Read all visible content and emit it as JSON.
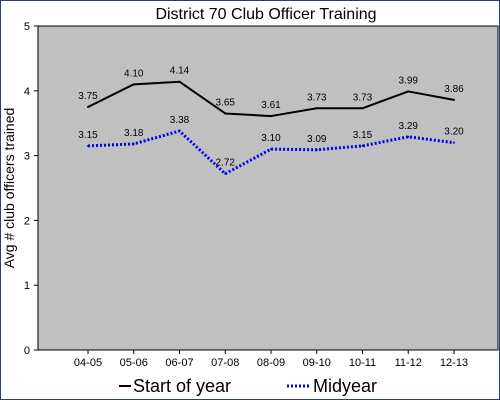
{
  "chart_data": {
    "type": "line",
    "title": "District 70 Club Officer Training",
    "xlabel": "",
    "ylabel": "Avg # club officers trained",
    "categories": [
      "04-05",
      "05-06",
      "06-07",
      "07-08",
      "08-09",
      "09-10",
      "10-11",
      "11-12",
      "12-13"
    ],
    "ylim": [
      0,
      5
    ],
    "yticks": [
      0,
      1,
      2,
      3,
      4,
      5
    ],
    "grid": false,
    "legend_position": "bottom",
    "plot_background": "#c0c0c0",
    "series": [
      {
        "name": "Start of year",
        "values": [
          3.75,
          4.1,
          4.14,
          3.65,
          3.61,
          3.73,
          3.73,
          3.99,
          3.86
        ],
        "labels": [
          "3.75",
          "4.10",
          "4.14",
          "3.65",
          "3.61",
          "3.73",
          "3.73",
          "3.99",
          "3.86"
        ],
        "color": "#000000",
        "line_style": "solid"
      },
      {
        "name": "Midyear",
        "values": [
          3.15,
          3.18,
          3.38,
          2.72,
          3.1,
          3.09,
          3.15,
          3.29,
          3.2
        ],
        "labels": [
          "3.15",
          "3.18",
          "3.38",
          "2.72",
          "3.10",
          "3.09",
          "3.15",
          "3.29",
          "3.20"
        ],
        "color": "#0000ee",
        "line_style": "dotted"
      }
    ]
  }
}
